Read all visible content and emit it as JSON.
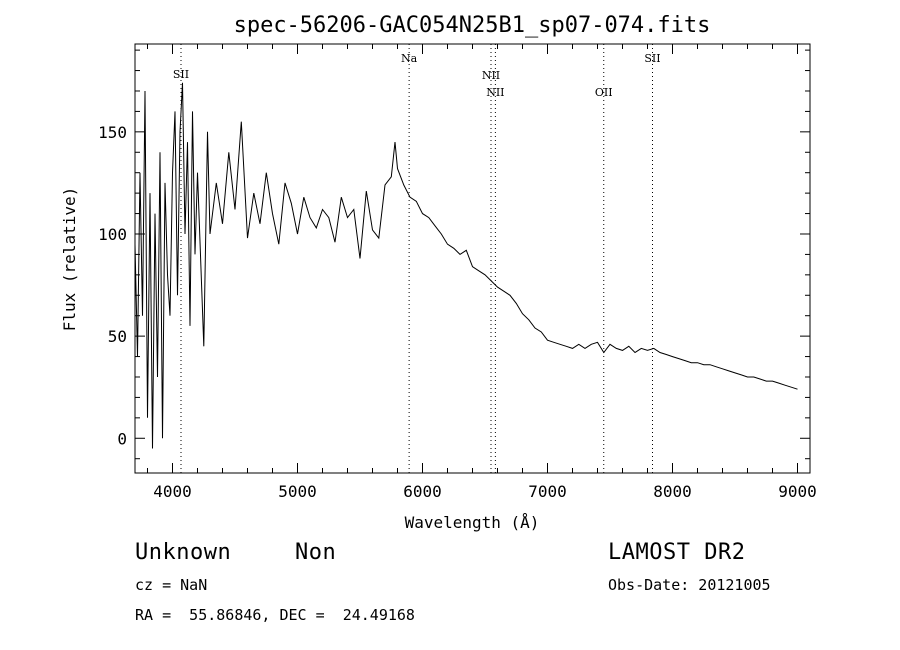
{
  "chart_data": {
    "type": "line",
    "title": "spec-56206-GAC054N25B1_sp07-074.fits",
    "xlabel": "Wavelength (Å)",
    "ylabel": "Flux (relative)",
    "xlim": [
      3700,
      9100
    ],
    "ylim": [
      -17,
      193
    ],
    "x_ticks": [
      4000,
      5000,
      6000,
      7000,
      8000,
      9000
    ],
    "y_ticks": [
      0,
      50,
      100,
      150
    ],
    "grid": false,
    "series": [
      {
        "x": [
          3700,
          3720,
          3740,
          3760,
          3780,
          3800,
          3820,
          3840,
          3860,
          3880,
          3900,
          3920,
          3940,
          3960,
          3980,
          4000,
          4020,
          4040,
          4060,
          4080,
          4100,
          4120,
          4140,
          4160,
          4180,
          4200,
          4250,
          4280,
          4300,
          4350,
          4400,
          4450,
          4500,
          4550,
          4600,
          4650,
          4700,
          4750,
          4800,
          4850,
          4900,
          4950,
          5000,
          5050,
          5100,
          5150,
          5200,
          5250,
          5300,
          5350,
          5400,
          5450,
          5500,
          5550,
          5600,
          5650,
          5700,
          5750,
          5780,
          5800,
          5850,
          5900,
          5950,
          6000,
          6050,
          6100,
          6150,
          6200,
          6250,
          6300,
          6350,
          6400,
          6450,
          6500,
          6550,
          6600,
          6650,
          6700,
          6750,
          6800,
          6850,
          6900,
          6950,
          7000,
          7050,
          7100,
          7150,
          7200,
          7250,
          7300,
          7350,
          7400,
          7450,
          7500,
          7550,
          7600,
          7650,
          7700,
          7750,
          7800,
          7850,
          7900,
          7950,
          8000,
          8050,
          8100,
          8150,
          8200,
          8250,
          8300,
          8350,
          8400,
          8450,
          8500,
          8550,
          8600,
          8650,
          8700,
          8750,
          8800,
          8850,
          8900,
          8950,
          9000
        ],
        "y": [
          95,
          40,
          130,
          60,
          170,
          10,
          120,
          -5,
          110,
          30,
          140,
          0,
          125,
          80,
          60,
          130,
          160,
          70,
          150,
          174,
          100,
          145,
          55,
          160,
          90,
          130,
          45,
          150,
          100,
          125,
          105,
          140,
          112,
          155,
          98,
          120,
          105,
          130,
          110,
          95,
          125,
          115,
          100,
          118,
          108,
          103,
          112,
          108,
          96,
          118,
          108,
          112,
          88,
          121,
          102,
          98,
          124,
          128,
          145,
          132,
          124,
          118,
          116,
          110,
          108,
          104,
          100,
          95,
          93,
          90,
          92,
          84,
          82,
          80,
          77,
          74,
          72,
          70,
          66,
          61,
          58,
          54,
          52,
          48,
          47,
          46,
          45,
          44,
          46,
          44,
          46,
          47,
          42,
          46,
          44,
          43,
          45,
          42,
          44,
          43,
          44,
          42,
          41,
          40,
          39,
          38,
          37,
          37,
          36,
          36,
          35,
          34,
          33,
          32,
          31,
          30,
          30,
          29,
          28,
          28,
          27,
          26,
          25,
          24
        ]
      }
    ],
    "annotations": [
      {
        "label": "SII",
        "x": 4068
      },
      {
        "label": "Na",
        "x": 5893
      },
      {
        "label": "NII",
        "x": 6548
      },
      {
        "label": "NII",
        "x": 6583
      },
      {
        "label": "OII",
        "x": 7450
      },
      {
        "label": "SII",
        "x": 7840
      }
    ]
  },
  "footer": {
    "class_label": "Unknown",
    "subclass_label": "Non",
    "survey": "LAMOST DR2",
    "redshift": "cz = NaN",
    "obs_date": "Obs-Date: 20121005",
    "coords": "RA =  55.86846, DEC =  24.49168"
  }
}
